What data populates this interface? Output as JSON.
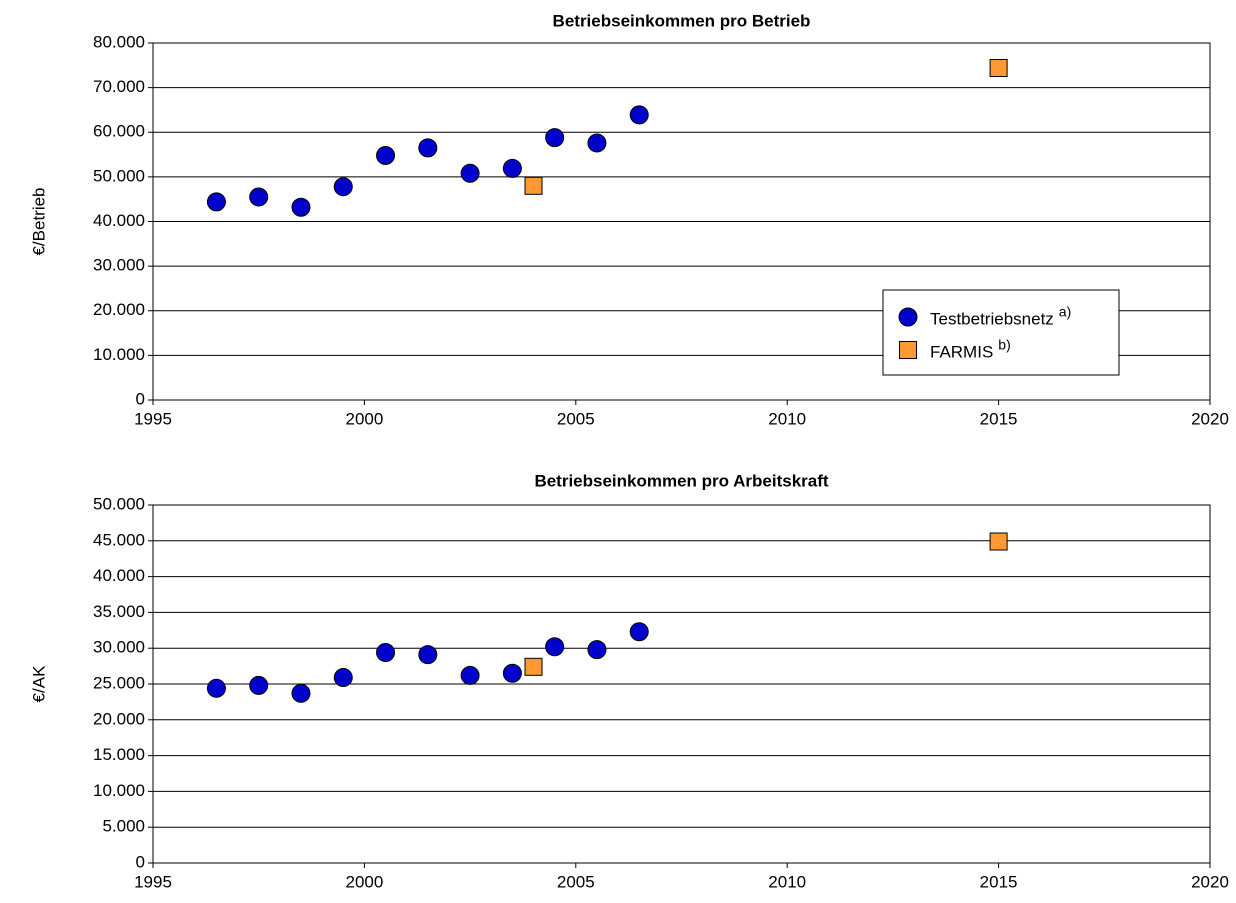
{
  "chart_data": [
    {
      "type": "scatter",
      "title": "Betriebseinkommen pro Betrieb",
      "y_label": "€/Betrieb",
      "series": [
        {
          "name": "Testbetriebsnetz",
          "superscript": "a)",
          "marker": "circle",
          "color": "#0000cc",
          "x": [
            1996.5,
            1997.5,
            1998.5,
            1999.5,
            2000.5,
            2001.5,
            2002.5,
            2003.5,
            2004.5,
            2005.5,
            2006.5
          ],
          "values": [
            44400,
            45500,
            43200,
            47800,
            54800,
            56500,
            50800,
            51900,
            58800,
            57600,
            63900
          ]
        },
        {
          "name": "FARMIS",
          "superscript": "b)",
          "marker": "square",
          "color": "#ff9933",
          "x": [
            2004,
            2015
          ],
          "values": [
            48000,
            74400
          ]
        }
      ],
      "xlim": [
        1995,
        2020
      ],
      "xticks": [
        1995,
        2000,
        2005,
        2010,
        2015,
        2020
      ],
      "ylim": [
        0,
        80000
      ],
      "yticks": [
        0,
        {
          "value": 10000,
          "label": "10.000"
        },
        {
          "value": 20000,
          "label": "20.000"
        },
        {
          "value": 30000,
          "label": "30.000"
        },
        {
          "value": 40000,
          "label": "40.000"
        },
        {
          "value": 50000,
          "label": "50.000"
        },
        {
          "value": 60000,
          "label": "60.000"
        },
        {
          "value": 70000,
          "label": "70.000"
        },
        {
          "value": 80000,
          "label": "80.000"
        }
      ],
      "grid": true,
      "legend": "lower right"
    },
    {
      "type": "scatter",
      "title": "Betriebseinkommen pro Arbeitskraft",
      "y_label": "€/AK",
      "series": [
        {
          "name": "Testbetriebsnetz",
          "marker": "circle",
          "color": "#0000cc",
          "x": [
            1996.5,
            1997.5,
            1998.5,
            1999.5,
            2000.5,
            2001.5,
            2002.5,
            2003.5,
            2004.5,
            2005.5,
            2006.5
          ],
          "values": [
            24400,
            24800,
            23700,
            25900,
            29400,
            29100,
            26200,
            26500,
            30200,
            29800,
            32300
          ]
        },
        {
          "name": "FARMIS",
          "marker": "square",
          "color": "#ff9933",
          "x": [
            2004,
            2015
          ],
          "values": [
            27400,
            44900
          ]
        }
      ],
      "xlim": [
        1995,
        2020
      ],
      "xticks": [
        1995,
        2000,
        2005,
        2010,
        2015,
        2020
      ],
      "ylim": [
        0,
        50000
      ],
      "yticks": [
        0,
        {
          "value": 5000,
          "label": "5.000"
        },
        {
          "value": 10000,
          "label": "10.000"
        },
        {
          "value": 15000,
          "label": "15.000"
        },
        {
          "value": 20000,
          "label": "20.000"
        },
        {
          "value": 25000,
          "label": "25.000"
        },
        {
          "value": 30000,
          "label": "30.000"
        },
        {
          "value": 35000,
          "label": "35.000"
        },
        {
          "value": 40000,
          "label": "40.000"
        },
        {
          "value": 45000,
          "label": "45.000"
        },
        {
          "value": 50000,
          "label": "50.000"
        }
      ],
      "grid": true,
      "legend": "none"
    }
  ]
}
